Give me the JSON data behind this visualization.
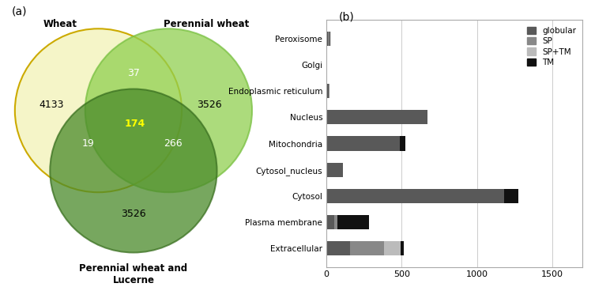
{
  "venn": {
    "wheat_only": 4133,
    "perennial_only": 3526,
    "lucerne_only": 3526,
    "wheat_perennial": 37,
    "wheat_lucerne": 19,
    "perennial_lucerne": 266,
    "all_three": 174,
    "wheat_color": "#f5f5c8",
    "wheat_edge_color": "#ccaa00",
    "perennial_color": "#90d050",
    "perennial_edge_color": "#78c040",
    "lucerne_color": "#4a8a2a",
    "lucerne_edge_color": "#3a7020",
    "wheat_label": "Wheat",
    "perennial_label": "Perennial wheat",
    "lucerne_label": "Perennial wheat and\nLucerne"
  },
  "bar": {
    "categories": [
      "Peroxisome",
      "Golgi",
      "Endoplasmic reticulum",
      "Nucleus",
      "Mitochondria",
      "Cytosol_nucleus",
      "Cytosol",
      "Plasma membrane",
      "Extracellular"
    ],
    "globular": [
      18,
      4,
      18,
      670,
      490,
      110,
      1180,
      50,
      155
    ],
    "SP": [
      0,
      0,
      5,
      0,
      0,
      0,
      0,
      25,
      230
    ],
    "SP_TM": [
      4,
      0,
      0,
      0,
      0,
      0,
      0,
      0,
      110
    ],
    "TM": [
      3,
      0,
      0,
      0,
      35,
      0,
      95,
      210,
      18
    ],
    "globular_color": "#595959",
    "SP_color": "#888888",
    "SP_TM_color": "#bbbbbb",
    "TM_color": "#111111",
    "xlim": [
      0,
      1700
    ],
    "xticks": [
      0,
      500,
      1000,
      1500
    ]
  },
  "label_a": "(a)",
  "label_b": "(b)"
}
